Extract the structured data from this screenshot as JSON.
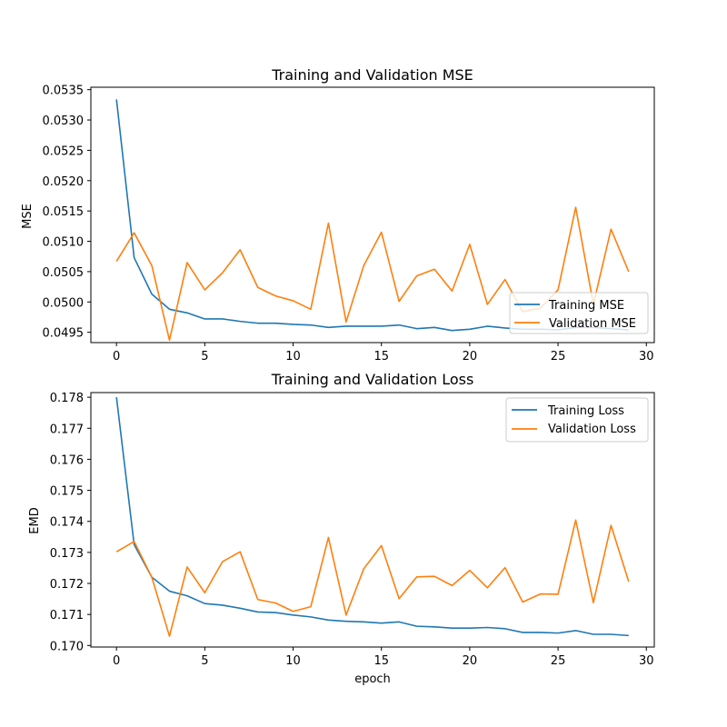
{
  "chart_data": [
    {
      "type": "line",
      "title": "Training and Validation MSE",
      "xlabel": "",
      "ylabel": "MSE",
      "xlim": [
        -1.45,
        30.45
      ],
      "ylim": [
        0.04933,
        0.05354
      ],
      "xticks": [
        0,
        5,
        10,
        15,
        20,
        25,
        30
      ],
      "yticks": [
        0.0495,
        0.05,
        0.0505,
        0.051,
        0.0515,
        0.052,
        0.0525,
        0.053,
        0.0535
      ],
      "ytick_labels": [
        "0.0495",
        "0.0500",
        "0.0505",
        "0.0510",
        "0.0515",
        "0.0520",
        "0.0525",
        "0.0530",
        "0.0535"
      ],
      "grid": false,
      "legend_position": "lower-right",
      "x": [
        0,
        1,
        2,
        3,
        4,
        5,
        6,
        7,
        8,
        9,
        10,
        11,
        12,
        13,
        14,
        15,
        16,
        17,
        18,
        19,
        20,
        21,
        22,
        23,
        24,
        25,
        26,
        27,
        28,
        29
      ],
      "series": [
        {
          "name": "Training MSE",
          "color": "#1f77b4",
          "values": [
            0.05334,
            0.05073,
            0.05013,
            0.04988,
            0.04982,
            0.04972,
            0.04972,
            0.04968,
            0.04965,
            0.04965,
            0.04963,
            0.04962,
            0.04958,
            0.0496,
            0.0496,
            0.0496,
            0.04962,
            0.04956,
            0.04958,
            0.04953,
            0.04955,
            0.0496,
            0.04957,
            0.04955,
            0.04955,
            0.04954,
            0.04958,
            0.04958,
            0.04956,
            0.04954
          ]
        },
        {
          "name": "Validation MSE",
          "color": "#ff7f0e",
          "values": [
            0.05067,
            0.05114,
            0.0506,
            0.04937,
            0.05065,
            0.0502,
            0.05048,
            0.05086,
            0.05024,
            0.0501,
            0.05002,
            0.04988,
            0.0513,
            0.04967,
            0.0506,
            0.05115,
            0.05001,
            0.05043,
            0.05054,
            0.05018,
            0.05095,
            0.04996,
            0.05037,
            0.04984,
            0.0499,
            0.0502,
            0.05156,
            0.04996,
            0.0512,
            0.0505
          ]
        }
      ]
    },
    {
      "type": "line",
      "title": "Training and Validation Loss",
      "xlabel": "epoch",
      "ylabel": "EMD",
      "xlim": [
        -1.45,
        30.45
      ],
      "ylim": [
        0.16995,
        0.17815
      ],
      "xticks": [
        0,
        5,
        10,
        15,
        20,
        25,
        30
      ],
      "yticks": [
        0.17,
        0.171,
        0.172,
        0.173,
        0.174,
        0.175,
        0.176,
        0.177,
        0.178
      ],
      "ytick_labels": [
        "0.170",
        "0.171",
        "0.172",
        "0.173",
        "0.174",
        "0.175",
        "0.176",
        "0.177",
        "0.178"
      ],
      "grid": false,
      "legend_position": "upper-right",
      "x": [
        0,
        1,
        2,
        3,
        4,
        5,
        6,
        7,
        8,
        9,
        10,
        11,
        12,
        13,
        14,
        15,
        16,
        17,
        18,
        19,
        20,
        21,
        22,
        23,
        24,
        25,
        26,
        27,
        28,
        29
      ],
      "series": [
        {
          "name": "Training Loss",
          "color": "#1f77b4",
          "values": [
            0.178,
            0.17325,
            0.1722,
            0.17175,
            0.1716,
            0.17135,
            0.1713,
            0.1712,
            0.17108,
            0.17106,
            0.17098,
            0.17092,
            0.17082,
            0.17078,
            0.17076,
            0.17072,
            0.17076,
            0.17062,
            0.1706,
            0.17056,
            0.17056,
            0.17058,
            0.17054,
            0.17042,
            0.17042,
            0.1704,
            0.17048,
            0.17036,
            0.17036,
            0.17032
          ]
        },
        {
          "name": "Validation Loss",
          "color": "#ff7f0e",
          "values": [
            0.17302,
            0.17335,
            0.1722,
            0.1703,
            0.17253,
            0.1717,
            0.1727,
            0.17302,
            0.17148,
            0.17137,
            0.1711,
            0.17125,
            0.17348,
            0.17098,
            0.17247,
            0.17322,
            0.17151,
            0.17221,
            0.17223,
            0.17193,
            0.17242,
            0.17186,
            0.17251,
            0.1714,
            0.17166,
            0.17165,
            0.17404,
            0.17138,
            0.17387,
            0.17206
          ]
        }
      ]
    }
  ]
}
